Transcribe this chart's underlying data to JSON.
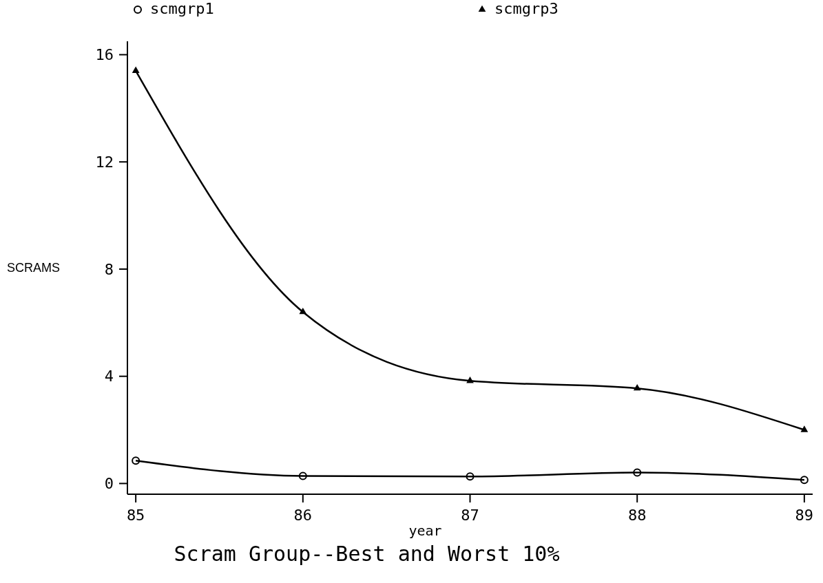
{
  "chart_data": {
    "type": "line",
    "title": "Scram Group--Best and Worst 10%",
    "xlabel": "year",
    "ylabel": "SCRAMS",
    "x": [
      85,
      86,
      87,
      88,
      89
    ],
    "series": [
      {
        "name": "scmgrp1",
        "color": "#000000",
        "marker": "circle",
        "values": [
          0.85,
          0.28,
          0.26,
          0.41,
          0.13
        ]
      },
      {
        "name": "scmgrp3",
        "color": "#000000",
        "marker": "triangle",
        "values": [
          15.4,
          6.4,
          3.83,
          3.55,
          2.0
        ]
      }
    ],
    "xlim": [
      84.95,
      89.05
    ],
    "xticks": [
      85,
      86,
      87,
      88,
      89
    ],
    "ylim": [
      -0.4,
      16.5
    ],
    "yticks": [
      0,
      4,
      8,
      12,
      16
    ],
    "grid": false,
    "legend": "top",
    "line_style": "solid"
  }
}
